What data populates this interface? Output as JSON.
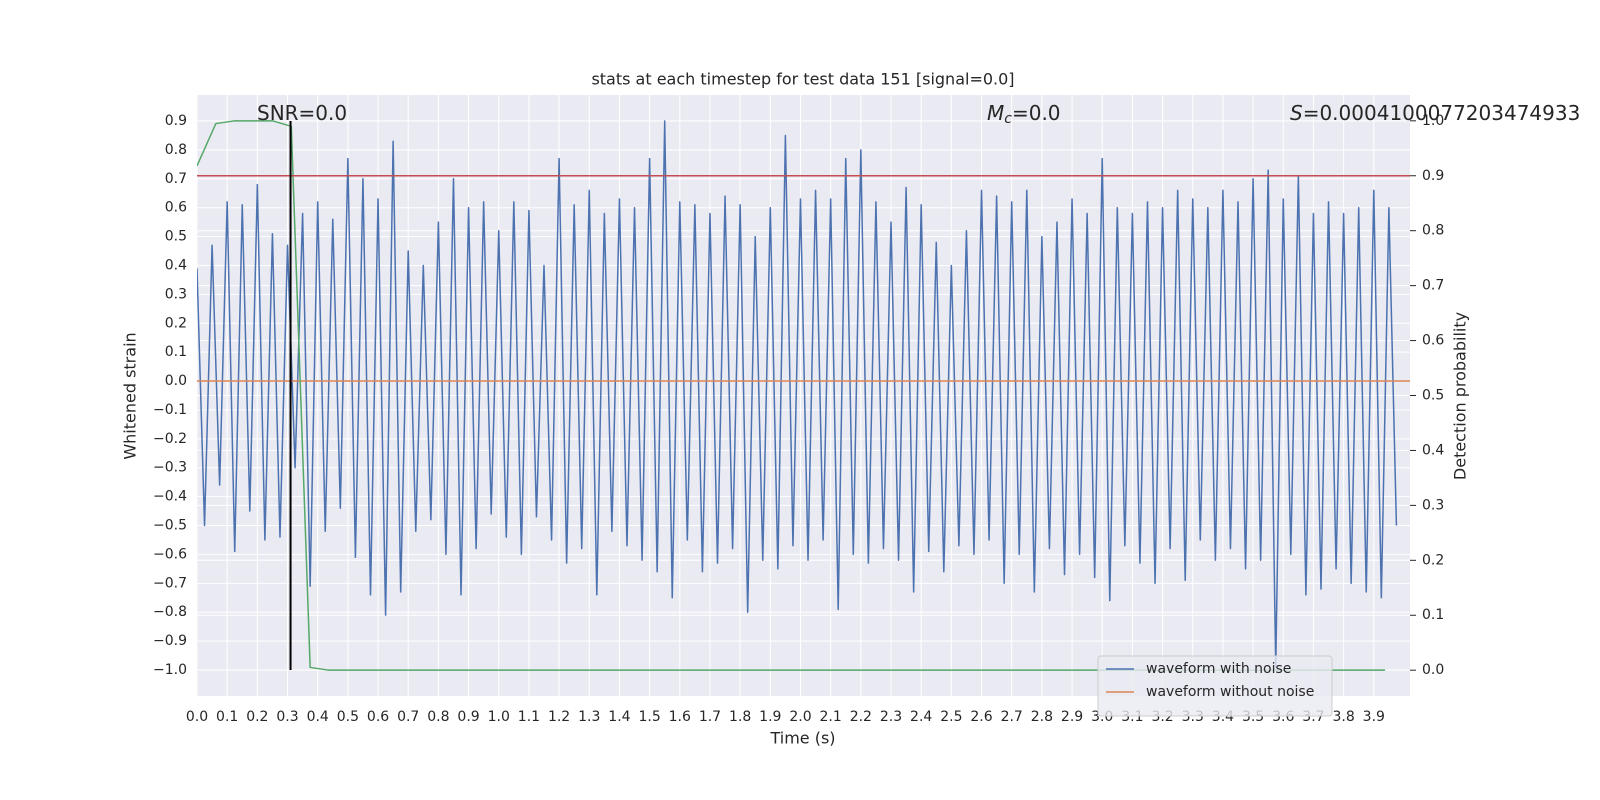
{
  "chart_data": {
    "type": "line",
    "title": "stats at each timestep for test data 151 [signal=0.0]",
    "xlabel": "Time (s)",
    "ylabel": "Whitened strain",
    "y2label": "Detection probability",
    "grid": true,
    "background": "#eaeaf2",
    "legend": "lower right",
    "xlim": [
      0,
      4.02
    ],
    "ylim": [
      -1.09,
      0.99
    ],
    "y2lim": [
      -0.047,
      1.047
    ],
    "xticks": [
      {
        "value": 0,
        "label": "0.0"
      },
      0.1,
      0.2,
      0.3,
      0.4,
      0.5,
      0.6,
      0.7,
      0.8,
      0.9,
      {
        "value": 1,
        "label": "1.0"
      },
      1.1,
      1.2,
      1.3,
      1.4,
      1.5,
      1.6,
      1.7,
      1.8,
      1.9,
      {
        "value": 2,
        "label": "2.0"
      },
      2.1,
      2.2,
      2.3,
      2.4,
      2.5,
      2.6,
      2.7,
      2.8,
      2.9,
      {
        "value": 3,
        "label": "3.0"
      },
      3.1,
      3.2,
      3.3,
      3.4,
      3.5,
      3.6,
      3.7,
      3.8,
      3.9
    ],
    "yticks": [
      {
        "value": -1,
        "label": "−1.0"
      },
      {
        "value": -0.9,
        "label": "−0.9"
      },
      {
        "value": -0.8,
        "label": "−0.8"
      },
      {
        "value": -0.7,
        "label": "−0.7"
      },
      {
        "value": -0.6,
        "label": "−0.6"
      },
      {
        "value": -0.5,
        "label": "−0.5"
      },
      {
        "value": -0.4,
        "label": "−0.4"
      },
      {
        "value": -0.3,
        "label": "−0.3"
      },
      {
        "value": -0.2,
        "label": "−0.2"
      },
      {
        "value": -0.1,
        "label": "−0.1"
      },
      {
        "value": 0,
        "label": "0.0"
      },
      0.1,
      0.2,
      0.3,
      0.4,
      0.5,
      0.6,
      0.7,
      0.8,
      0.9
    ],
    "y2ticks": [
      {
        "value": 0,
        "label": "0.0"
      },
      0.1,
      0.2,
      0.3,
      0.4,
      0.5,
      0.6,
      0.7,
      0.8,
      0.9,
      {
        "value": 1,
        "label": "1.0"
      }
    ],
    "series": [
      {
        "name": "waveform with noise",
        "color": "#4c72b0",
        "x": [
          0,
          0.025,
          0.05,
          0.075,
          0.1,
          0.125,
          0.15,
          0.175,
          0.2,
          0.225,
          0.25,
          0.275,
          0.3,
          0.325,
          0.35,
          0.375,
          0.4,
          0.425,
          0.45,
          0.475,
          0.5,
          0.525,
          0.55,
          0.575,
          0.6,
          0.625,
          0.65,
          0.675,
          0.7,
          0.725,
          0.75,
          0.775,
          0.8,
          0.825,
          0.85,
          0.875,
          0.9,
          0.925,
          0.95,
          0.975,
          1,
          1.025,
          1.05,
          1.075,
          1.1,
          1.125,
          1.15,
          1.175,
          1.2,
          1.225,
          1.25,
          1.275,
          1.3,
          1.325,
          1.35,
          1.375,
          1.4,
          1.425,
          1.45,
          1.475,
          1.5,
          1.525,
          1.55,
          1.575,
          1.6,
          1.625,
          1.65,
          1.675,
          1.7,
          1.725,
          1.75,
          1.775,
          1.8,
          1.825,
          1.85,
          1.875,
          1.9,
          1.925,
          1.95,
          1.975,
          2,
          2.025,
          2.05,
          2.075,
          2.1,
          2.125,
          2.15,
          2.175,
          2.2,
          2.225,
          2.25,
          2.275,
          2.3,
          2.325,
          2.35,
          2.375,
          2.4,
          2.425,
          2.45,
          2.475,
          2.5,
          2.525,
          2.55,
          2.575,
          2.6,
          2.625,
          2.65,
          2.675,
          2.7,
          2.725,
          2.75,
          2.775,
          2.8,
          2.825,
          2.85,
          2.875,
          2.9,
          2.925,
          2.95,
          2.975,
          3,
          3.025,
          3.05,
          3.075,
          3.1,
          3.125,
          3.15,
          3.175,
          3.2,
          3.225,
          3.25,
          3.275,
          3.3,
          3.325,
          3.35,
          3.375,
          3.4,
          3.425,
          3.45,
          3.475,
          3.5,
          3.525,
          3.55,
          3.575,
          3.6,
          3.625,
          3.65,
          3.675,
          3.7,
          3.725,
          3.75,
          3.775,
          3.8,
          3.825,
          3.85,
          3.875,
          3.9,
          3.925,
          3.95,
          3.975
        ],
        "values": [
          0.39,
          -0.5,
          0.47,
          -0.36,
          0.62,
          -0.59,
          0.61,
          -0.45,
          0.68,
          -0.55,
          0.51,
          -0.54,
          0.47,
          -0.3,
          0.58,
          -0.71,
          0.62,
          -0.52,
          0.56,
          -0.44,
          0.77,
          -0.61,
          0.7,
          -0.74,
          0.63,
          -0.81,
          0.83,
          -0.73,
          0.45,
          -0.52,
          0.4,
          -0.48,
          0.55,
          -0.6,
          0.7,
          -0.74,
          0.6,
          -0.58,
          0.62,
          -0.46,
          0.52,
          -0.54,
          0.62,
          -0.6,
          0.59,
          -0.47,
          0.4,
          -0.55,
          0.77,
          -0.63,
          0.61,
          -0.58,
          0.66,
          -0.74,
          0.58,
          -0.52,
          0.63,
          -0.57,
          0.6,
          -0.62,
          0.77,
          -0.66,
          0.9,
          -0.75,
          0.62,
          -0.55,
          0.61,
          -0.66,
          0.58,
          -0.63,
          0.64,
          -0.58,
          0.61,
          -0.8,
          0.5,
          -0.62,
          0.6,
          -0.65,
          0.85,
          -0.57,
          0.63,
          -0.62,
          0.66,
          -0.55,
          0.63,
          -0.79,
          0.77,
          -0.6,
          0.8,
          -0.63,
          0.62,
          -0.58,
          0.55,
          -0.62,
          0.67,
          -0.73,
          0.61,
          -0.59,
          0.48,
          -0.66,
          0.4,
          -0.57,
          0.52,
          -0.6,
          0.66,
          -0.55,
          0.64,
          -0.7,
          0.62,
          -0.6,
          0.66,
          -0.73,
          0.5,
          -0.58,
          0.55,
          -0.67,
          0.63,
          -0.6,
          0.58,
          -0.68,
          0.77,
          -0.76,
          0.6,
          -0.57,
          0.58,
          -0.63,
          0.62,
          -0.7,
          0.6,
          -0.58,
          0.66,
          -0.69,
          0.63,
          -0.55,
          0.6,
          -0.62,
          0.66,
          -0.58,
          0.62,
          -0.65,
          0.7,
          -0.62,
          0.73,
          -0.99,
          0.63,
          -0.6,
          0.71,
          -0.74,
          0.58,
          -0.72,
          0.62,
          -0.65,
          0.58,
          -0.7,
          0.6,
          -0.73,
          0.66,
          -0.75,
          0.6,
          -0.5
        ]
      },
      {
        "name": "waveform without noise",
        "color": "#dd8452",
        "x": [
          0,
          4.02
        ],
        "values": [
          0,
          0
        ]
      },
      {
        "color": "#55a868",
        "axis": "y2",
        "x": [
          0,
          0.0625,
          0.125,
          0.1875,
          0.25,
          0.3125,
          0.375,
          0.4375,
          3.9375
        ],
        "values": [
          0.918,
          0.995,
          1.0,
          1.0,
          1.0,
          0.99,
          0.005,
          0,
          0
        ]
      }
    ],
    "hlines": [
      {
        "y": 0.9,
        "axis": "y2",
        "color": "#c44e52"
      }
    ],
    "vlines": [
      {
        "x": 0.31,
        "ymin": -1.0,
        "ymax": 0.9,
        "color": "#000000"
      }
    ],
    "annotations": [
      {
        "text": "SNR=0.0"
      },
      {
        "symbol": "M",
        "subscript": "c",
        "text": "=0.0"
      },
      {
        "symbol": "S",
        "text": "=0.0004100077203474933"
      }
    ]
  }
}
